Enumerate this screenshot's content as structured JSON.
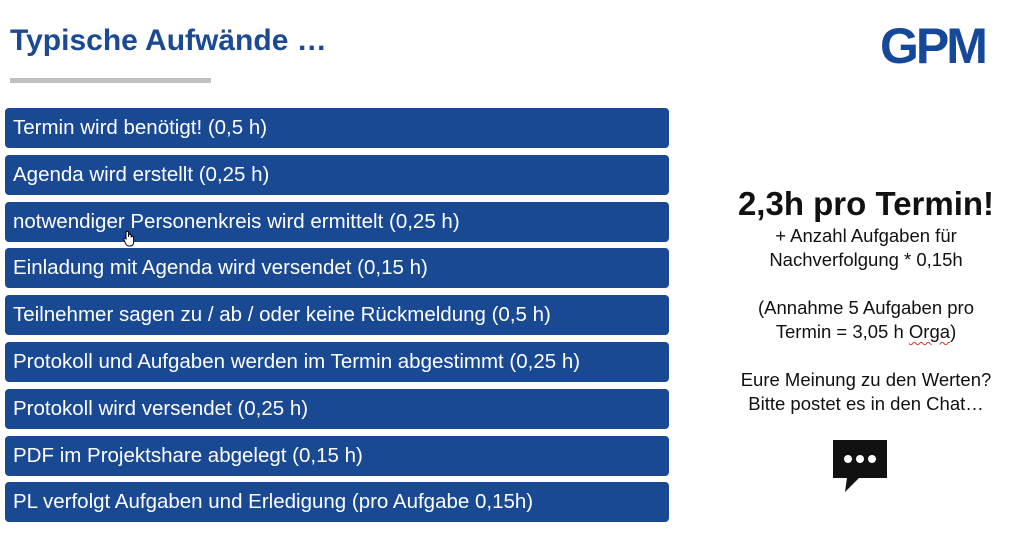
{
  "title": "Typische Aufwände …",
  "logo": "GPM",
  "tasks": [
    "Termin wird benötigt! (0,5 h)",
    "Agenda wird erstellt (0,25 h)",
    "notwendiger Personenkreis wird ermittelt (0,25 h)",
    "Einladung mit Agenda wird versendet (0,15 h)",
    "Teilnehmer sagen zu / ab / oder keine Rückmeldung (0,5 h)",
    "Protokoll und Aufgaben werden im Termin abgestimmt (0,25 h)",
    "Protokoll wird versendet (0,25 h)",
    "PDF im Projektshare abgelegt (0,15 h)",
    "PL verfolgt Aufgaben und Erledigung (pro Aufgabe 0,15h)"
  ],
  "side": {
    "headline": "2,3h pro Termin!",
    "line1": "+ Anzahl Aufgaben für",
    "line2": "Nachverfolgung * 0,15h",
    "line3": "(Annahme 5 Aufgaben pro",
    "line4_prefix": "Termin = 3,05 h ",
    "line4_underlined": "Orga",
    "line4_suffix": ")",
    "line5": "Eure Meinung zu den Werten?",
    "line6": "Bitte postet es in den Chat…"
  },
  "colors": {
    "title": "#1b4a92",
    "task_bg": "#1a4994",
    "logo": "#16489a",
    "underline": "#c0c0c0"
  },
  "icons": [
    "chat-bubble-icon",
    "cursor-icon"
  ]
}
